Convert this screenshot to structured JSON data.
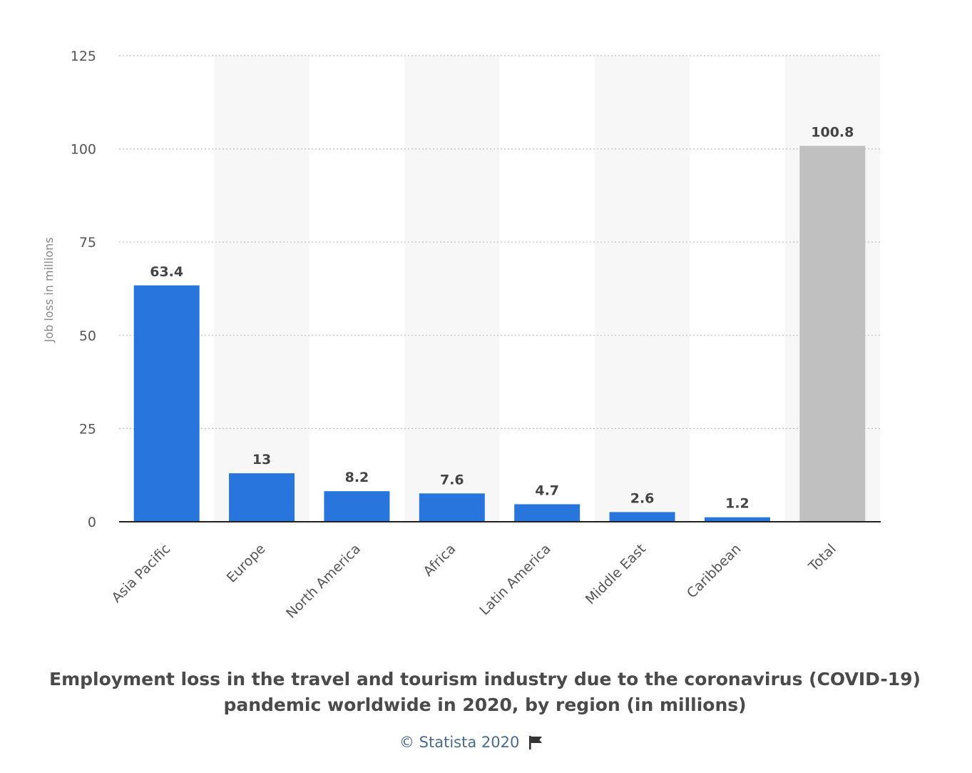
{
  "chart_data": {
    "type": "bar",
    "categories": [
      "Asia Pacific",
      "Europe",
      "North America",
      "Africa",
      "Latin America",
      "Middle East",
      "Caribbean",
      "Total"
    ],
    "values": [
      63.4,
      13,
      8.2,
      7.6,
      4.7,
      2.6,
      1.2,
      100.8
    ],
    "value_labels": [
      "63.4",
      "13",
      "8.2",
      "7.6",
      "4.7",
      "2.6",
      "1.2",
      "100.8"
    ],
    "bar_colors": [
      "#2876dd",
      "#2876dd",
      "#2876dd",
      "#2876dd",
      "#2876dd",
      "#2876dd",
      "#2876dd",
      "#c0c0c0"
    ],
    "title_lines": [
      "Employment loss in the travel and tourism industry due to the coronavirus (COVID-19)",
      "pandemic worldwide in 2020, by region (in millions)"
    ],
    "xlabel": "",
    "ylabel": "Job loss in millions",
    "ylim": [
      0,
      125
    ],
    "yticks": [
      0,
      25,
      50,
      75,
      100,
      125
    ],
    "grid": true,
    "grid_style": "dotted",
    "alternating_column_shading": true,
    "x_label_rotation_deg": -45
  },
  "credit": {
    "text": "© Statista 2020",
    "icon": "flag-icon"
  },
  "colors": {
    "primary_bar": "#2876dd",
    "total_bar": "#c0c0c0",
    "column_shade": "#f7f7f7",
    "title": "#4a4a4a",
    "credit": "#4a6a8f"
  }
}
